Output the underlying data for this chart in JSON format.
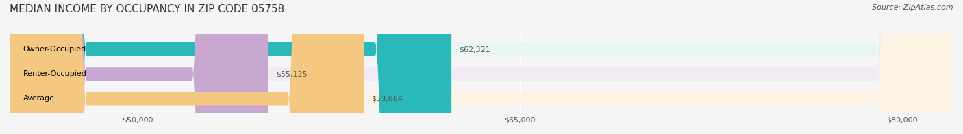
{
  "title": "MEDIAN INCOME BY OCCUPANCY IN ZIP CODE 05758",
  "source": "Source: ZipAtlas.com",
  "categories": [
    "Owner-Occupied",
    "Renter-Occupied",
    "Average"
  ],
  "values": [
    62321,
    55125,
    58884
  ],
  "labels": [
    "$62,321",
    "$55,125",
    "$58,884"
  ],
  "bar_colors": [
    "#2ab8b8",
    "#c8a8d0",
    "#f5c882"
  ],
  "bar_bg_colors": [
    "#e8f5f5",
    "#f0eaf5",
    "#fdf3e3"
  ],
  "xlim_min": 45000,
  "xlim_max": 82000,
  "xticks": [
    50000,
    65000,
    80000
  ],
  "xtick_labels": [
    "$50,000",
    "$65,000",
    "$80,000"
  ],
  "title_fontsize": 11,
  "source_fontsize": 8,
  "label_fontsize": 8,
  "bar_label_fontsize": 8,
  "background_color": "#f5f5f5",
  "bar_bg_color": "#ececec"
}
